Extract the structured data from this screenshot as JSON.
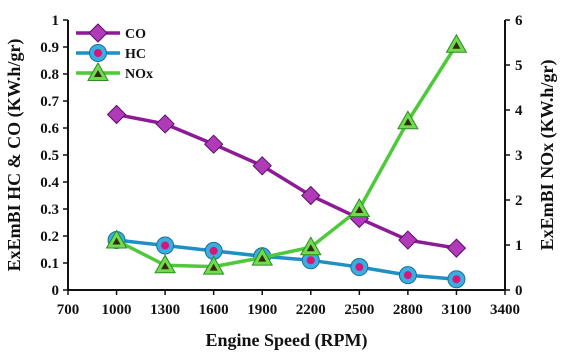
{
  "chart_data": {
    "type": "line",
    "title": "",
    "xlabel": "Engine Speed (RPM)",
    "ylabel_left": "ExEmBI HC & CO (KW.h/gr)",
    "ylabel_right": "ExEmBI NOx (KW.h/gr)",
    "xlim": [
      700,
      3400
    ],
    "xticks": [
      700,
      1000,
      1300,
      1600,
      1900,
      2200,
      2500,
      2800,
      3100,
      3400
    ],
    "ylim_left": [
      0,
      1
    ],
    "yticks_left": [
      0,
      0.1,
      0.2,
      0.3,
      0.4,
      0.5,
      0.6,
      0.7,
      0.8,
      0.9,
      1
    ],
    "ylim_right": [
      0,
      6
    ],
    "yticks_right": [
      0,
      1,
      2,
      3,
      4,
      5,
      6
    ],
    "grid": false,
    "legend_position": "top-left",
    "x": [
      1000,
      1300,
      1600,
      1900,
      2200,
      2500,
      2800,
      3100
    ],
    "series": [
      {
        "name": "CO",
        "axis": "left",
        "color": "#8e1b96",
        "marker": "diamond",
        "marker_color": "#b03ab8",
        "values": [
          0.65,
          0.615,
          0.54,
          0.46,
          0.35,
          0.265,
          0.185,
          0.155
        ]
      },
      {
        "name": "HC",
        "axis": "left",
        "color": "#1f8fc4",
        "marker": "circle",
        "marker_color": "#3aaee0",
        "inner_color": "#d8157a",
        "values": [
          0.185,
          0.165,
          0.145,
          0.125,
          0.11,
          0.085,
          0.055,
          0.04
        ]
      },
      {
        "name": "NOx",
        "axis": "right",
        "color": "#4ec93a",
        "marker": "triangle",
        "marker_color": "#6fdc50",
        "inner_color": "#3a2a00",
        "values": [
          1.1,
          0.55,
          0.52,
          0.72,
          0.95,
          1.8,
          3.75,
          5.45
        ]
      }
    ]
  }
}
